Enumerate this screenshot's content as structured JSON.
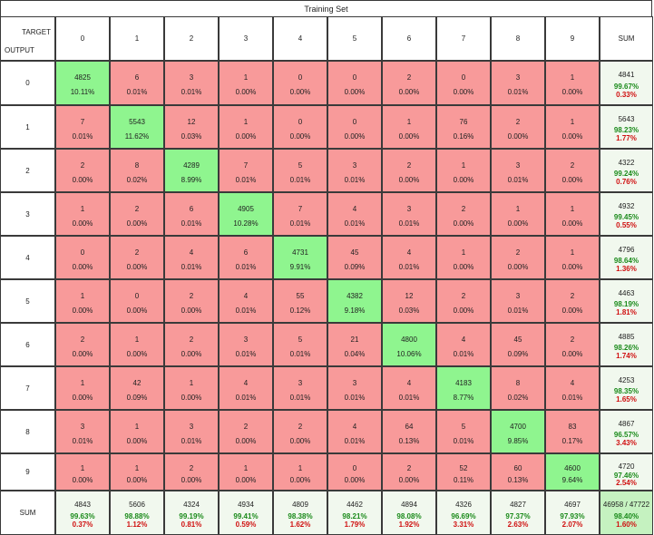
{
  "title": "Training Set",
  "corner": {
    "target_label": "TARGET",
    "output_label": "OUTPUT"
  },
  "sum_label": "SUM",
  "chart_data": {
    "type": "heatmap",
    "title": "Training Set",
    "xlabel": "TARGET",
    "ylabel": "OUTPUT",
    "col_labels": [
      "0",
      "1",
      "2",
      "3",
      "4",
      "5",
      "6",
      "7",
      "8",
      "9"
    ],
    "row_labels": [
      "0",
      "1",
      "2",
      "3",
      "4",
      "5",
      "6",
      "7",
      "8",
      "9"
    ],
    "rows": [
      {
        "counts": [
          "4825",
          "6",
          "3",
          "1",
          "0",
          "0",
          "2",
          "0",
          "3",
          "1"
        ],
        "pcts": [
          "10.11%",
          "0.01%",
          "0.01%",
          "0.00%",
          "0.00%",
          "0.00%",
          "0.00%",
          "0.00%",
          "0.01%",
          "0.00%"
        ],
        "sum": "4841",
        "sum_good": "99.67%",
        "sum_bad": "0.33%"
      },
      {
        "counts": [
          "7",
          "5543",
          "12",
          "1",
          "0",
          "0",
          "1",
          "76",
          "2",
          "1"
        ],
        "pcts": [
          "0.01%",
          "11.62%",
          "0.03%",
          "0.00%",
          "0.00%",
          "0.00%",
          "0.00%",
          "0.16%",
          "0.00%",
          "0.00%"
        ],
        "sum": "5643",
        "sum_good": "98.23%",
        "sum_bad": "1.77%"
      },
      {
        "counts": [
          "2",
          "8",
          "4289",
          "7",
          "5",
          "3",
          "2",
          "1",
          "3",
          "2"
        ],
        "pcts": [
          "0.00%",
          "0.02%",
          "8.99%",
          "0.01%",
          "0.01%",
          "0.01%",
          "0.00%",
          "0.00%",
          "0.01%",
          "0.00%"
        ],
        "sum": "4322",
        "sum_good": "99.24%",
        "sum_bad": "0.76%"
      },
      {
        "counts": [
          "1",
          "2",
          "6",
          "4905",
          "7",
          "4",
          "3",
          "2",
          "1",
          "1"
        ],
        "pcts": [
          "0.00%",
          "0.00%",
          "0.01%",
          "10.28%",
          "0.01%",
          "0.01%",
          "0.01%",
          "0.00%",
          "0.00%",
          "0.00%"
        ],
        "sum": "4932",
        "sum_good": "99.45%",
        "sum_bad": "0.55%"
      },
      {
        "counts": [
          "0",
          "2",
          "4",
          "6",
          "4731",
          "45",
          "4",
          "1",
          "2",
          "1"
        ],
        "pcts": [
          "0.00%",
          "0.00%",
          "0.01%",
          "0.01%",
          "9.91%",
          "0.09%",
          "0.01%",
          "0.00%",
          "0.00%",
          "0.00%"
        ],
        "sum": "4796",
        "sum_good": "98.64%",
        "sum_bad": "1.36%"
      },
      {
        "counts": [
          "1",
          "0",
          "2",
          "4",
          "55",
          "4382",
          "12",
          "2",
          "3",
          "2"
        ],
        "pcts": [
          "0.00%",
          "0.00%",
          "0.00%",
          "0.01%",
          "0.12%",
          "9.18%",
          "0.03%",
          "0.00%",
          "0.01%",
          "0.00%"
        ],
        "sum": "4463",
        "sum_good": "98.19%",
        "sum_bad": "1.81%"
      },
      {
        "counts": [
          "2",
          "1",
          "2",
          "3",
          "5",
          "21",
          "4800",
          "4",
          "45",
          "2"
        ],
        "pcts": [
          "0.00%",
          "0.00%",
          "0.00%",
          "0.01%",
          "0.01%",
          "0.04%",
          "10.06%",
          "0.01%",
          "0.09%",
          "0.00%"
        ],
        "sum": "4885",
        "sum_good": "98.26%",
        "sum_bad": "1.74%"
      },
      {
        "counts": [
          "1",
          "42",
          "1",
          "4",
          "3",
          "3",
          "4",
          "4183",
          "8",
          "4"
        ],
        "pcts": [
          "0.00%",
          "0.09%",
          "0.00%",
          "0.01%",
          "0.01%",
          "0.01%",
          "0.01%",
          "8.77%",
          "0.02%",
          "0.01%"
        ],
        "sum": "4253",
        "sum_good": "98.35%",
        "sum_bad": "1.65%"
      },
      {
        "counts": [
          "3",
          "1",
          "3",
          "2",
          "2",
          "4",
          "64",
          "5",
          "4700",
          "83"
        ],
        "pcts": [
          "0.01%",
          "0.00%",
          "0.01%",
          "0.00%",
          "0.00%",
          "0.01%",
          "0.13%",
          "0.01%",
          "9.85%",
          "0.17%"
        ],
        "sum": "4867",
        "sum_good": "96.57%",
        "sum_bad": "3.43%"
      },
      {
        "counts": [
          "1",
          "1",
          "2",
          "1",
          "1",
          "0",
          "2",
          "52",
          "60",
          "4600"
        ],
        "pcts": [
          "0.00%",
          "0.00%",
          "0.00%",
          "0.00%",
          "0.00%",
          "0.00%",
          "0.00%",
          "0.11%",
          "0.13%",
          "9.64%"
        ],
        "sum": "4720",
        "sum_good": "97.46%",
        "sum_bad": "2.54%"
      }
    ],
    "col_sums": [
      {
        "sum": "4843",
        "good": "99.63%",
        "bad": "0.37%"
      },
      {
        "sum": "5606",
        "good": "98.88%",
        "bad": "1.12%"
      },
      {
        "sum": "4324",
        "good": "99.19%",
        "bad": "0.81%"
      },
      {
        "sum": "4934",
        "good": "99.41%",
        "bad": "0.59%"
      },
      {
        "sum": "4809",
        "good": "98.38%",
        "bad": "1.62%"
      },
      {
        "sum": "4462",
        "good": "98.21%",
        "bad": "1.79%"
      },
      {
        "sum": "4894",
        "good": "98.08%",
        "bad": "1.92%"
      },
      {
        "sum": "4326",
        "good": "96.69%",
        "bad": "3.31%"
      },
      {
        "sum": "4827",
        "good": "97.37%",
        "bad": "2.63%"
      },
      {
        "sum": "4697",
        "good": "97.93%",
        "bad": "2.07%"
      }
    ],
    "total": {
      "sum": "46958 / 47722",
      "good": "98.40%",
      "bad": "1.60%"
    }
  },
  "colors": {
    "diagonal": "#8ff58f",
    "off_diagonal": "#f89a9a",
    "sum": "#f1f8ee",
    "total": "#c5f2c0",
    "good_text": "#1a8a1a",
    "bad_text": "#d01010"
  }
}
